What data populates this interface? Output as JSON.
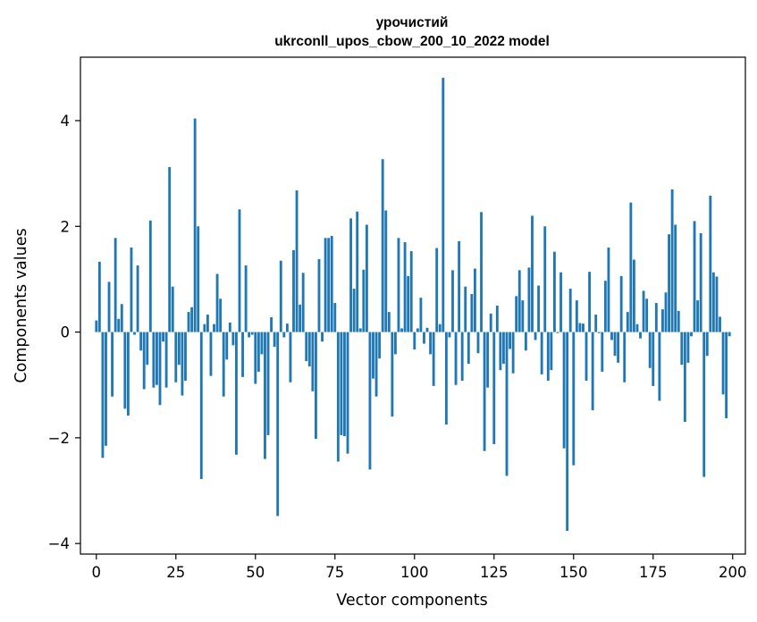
{
  "chart_data": {
    "type": "bar",
    "title_line1": "урочистий",
    "title_line2": "ukrconll_upos_cbow_200_10_2022 model",
    "xlabel": "Vector components",
    "ylabel": "Components values",
    "xlim": [
      -5,
      204
    ],
    "ylim": [
      -4.2,
      5.2
    ],
    "xticks": [
      0,
      25,
      50,
      75,
      100,
      125,
      150,
      175,
      200
    ],
    "xtick_labels": [
      "0",
      "25",
      "50",
      "75",
      "100",
      "125",
      "150",
      "175",
      "200"
    ],
    "yticks": [
      -4,
      -2,
      0,
      2,
      4
    ],
    "ytick_labels": [
      "−4",
      "−2",
      "0",
      "2",
      "4"
    ],
    "grid": false,
    "bar_color": "#1f77b4",
    "x": [
      0,
      1,
      2,
      3,
      4,
      5,
      6,
      7,
      8,
      9,
      10,
      11,
      12,
      13,
      14,
      15,
      16,
      17,
      18,
      19,
      20,
      21,
      22,
      23,
      24,
      25,
      26,
      27,
      28,
      29,
      30,
      31,
      32,
      33,
      34,
      35,
      36,
      37,
      38,
      39,
      40,
      41,
      42,
      43,
      44,
      45,
      46,
      47,
      48,
      49,
      50,
      51,
      52,
      53,
      54,
      55,
      56,
      57,
      58,
      59,
      60,
      61,
      62,
      63,
      64,
      65,
      66,
      67,
      68,
      69,
      70,
      71,
      72,
      73,
      74,
      75,
      76,
      77,
      78,
      79,
      80,
      81,
      82,
      83,
      84,
      85,
      86,
      87,
      88,
      89,
      90,
      91,
      92,
      93,
      94,
      95,
      96,
      97,
      98,
      99,
      100,
      101,
      102,
      103,
      104,
      105,
      106,
      107,
      108,
      109,
      110,
      111,
      112,
      113,
      114,
      115,
      116,
      117,
      118,
      119,
      120,
      121,
      122,
      123,
      124,
      125,
      126,
      127,
      128,
      129,
      130,
      131,
      132,
      133,
      134,
      135,
      136,
      137,
      138,
      139,
      140,
      141,
      142,
      143,
      144,
      145,
      146,
      147,
      148,
      149,
      150,
      151,
      152,
      153,
      154,
      155,
      156,
      157,
      158,
      159,
      160,
      161,
      162,
      163,
      164,
      165,
      166,
      167,
      168,
      169,
      170,
      171,
      172,
      173,
      174,
      175,
      176,
      177,
      178,
      179,
      180,
      181,
      182,
      183,
      184,
      185,
      186,
      187,
      188,
      189,
      190,
      191,
      192,
      193,
      194,
      195,
      196,
      197,
      198,
      199
    ],
    "values": [
      0.22,
      1.33,
      -2.38,
      -2.15,
      0.95,
      -1.22,
      1.78,
      0.25,
      0.53,
      -1.45,
      -1.58,
      1.6,
      -0.05,
      1.26,
      -0.35,
      -1.08,
      -0.62,
      2.11,
      -1.05,
      -1.0,
      -1.38,
      -0.18,
      -1.05,
      3.12,
      0.86,
      -0.95,
      -0.62,
      -1.2,
      -0.92,
      0.38,
      0.47,
      4.04,
      2.0,
      -2.78,
      0.15,
      0.33,
      -0.83,
      0.15,
      1.1,
      0.63,
      -1.22,
      -0.52,
      0.18,
      -0.25,
      -2.32,
      2.32,
      -0.85,
      1.26,
      -0.1,
      -0.05,
      -0.98,
      -0.75,
      -0.42,
      -2.4,
      -1.95,
      0.28,
      -0.28,
      -3.48,
      1.35,
      -0.1,
      0.16,
      -0.95,
      1.55,
      2.68,
      0.52,
      1.12,
      -0.55,
      -0.65,
      -1.12,
      -2.02,
      1.38,
      -0.18,
      1.78,
      1.78,
      1.82,
      0.55,
      -2.45,
      -1.95,
      -1.97,
      -2.3,
      2.15,
      0.82,
      2.28,
      0.07,
      1.18,
      2.03,
      -2.6,
      -0.88,
      -1.22,
      -0.5,
      3.27,
      2.3,
      0.38,
      -1.6,
      -0.42,
      1.78,
      0.07,
      1.7,
      1.06,
      1.53,
      -0.33,
      0.07,
      0.65,
      -0.22,
      0.08,
      -0.42,
      -1.02,
      1.59,
      0.15,
      4.81,
      -1.75,
      -0.1,
      1.17,
      -1.0,
      1.72,
      -0.92,
      0.86,
      -0.6,
      0.72,
      1.2,
      -0.4,
      2.27,
      -2.25,
      -1.05,
      0.35,
      -2.12,
      0.5,
      -0.72,
      -0.6,
      -2.72,
      -0.32,
      -0.78,
      0.68,
      1.17,
      0.6,
      -0.35,
      1.22,
      2.2,
      -0.15,
      0.88,
      -0.8,
      2.0,
      -0.92,
      -0.72,
      1.52,
      -0.02,
      1.13,
      -2.2,
      -3.76,
      0.82,
      -2.52,
      0.6,
      0.17,
      0.16,
      -0.92,
      1.14,
      -1.48,
      0.33,
      -0.02,
      -0.75,
      0.97,
      1.6,
      -0.15,
      -0.45,
      -0.58,
      1.06,
      -0.95,
      0.38,
      2.45,
      1.37,
      0.15,
      -0.12,
      0.78,
      0.63,
      -0.68,
      -1.02,
      0.55,
      -1.3,
      0.43,
      0.75,
      1.85,
      2.7,
      2.03,
      0.4,
      -0.62,
      -1.7,
      -0.58,
      -0.08,
      2.1,
      0.6,
      1.87,
      -2.74,
      -0.45,
      2.58,
      1.13,
      1.05,
      0.29,
      -1.18,
      -1.63,
      -0.08
    ]
  }
}
